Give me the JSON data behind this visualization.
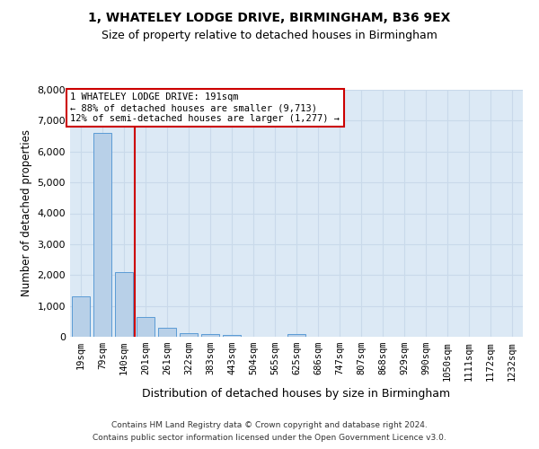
{
  "title": "1, WHATELEY LODGE DRIVE, BIRMINGHAM, B36 9EX",
  "subtitle": "Size of property relative to detached houses in Birmingham",
  "xlabel": "Distribution of detached houses by size in Birmingham",
  "ylabel": "Number of detached properties",
  "footnote1": "Contains HM Land Registry data © Crown copyright and database right 2024.",
  "footnote2": "Contains public sector information licensed under the Open Government Licence v3.0.",
  "bar_labels": [
    "19sqm",
    "79sqm",
    "140sqm",
    "201sqm",
    "261sqm",
    "322sqm",
    "383sqm",
    "443sqm",
    "504sqm",
    "565sqm",
    "625sqm",
    "686sqm",
    "747sqm",
    "807sqm",
    "868sqm",
    "929sqm",
    "990sqm",
    "1050sqm",
    "1111sqm",
    "1172sqm",
    "1232sqm"
  ],
  "bar_values": [
    1300,
    6600,
    2100,
    650,
    300,
    130,
    80,
    50,
    0,
    0,
    80,
    0,
    0,
    0,
    0,
    0,
    0,
    0,
    0,
    0,
    0
  ],
  "bar_color": "#b8d0e8",
  "bar_edge_color": "#5b9bd5",
  "grid_color": "#c9d9ea",
  "background_color": "#dce9f5",
  "vline_color": "#cc0000",
  "annotation_line1": "1 WHATELEY LODGE DRIVE: 191sqm",
  "annotation_line2": "← 88% of detached houses are smaller (9,713)",
  "annotation_line3": "12% of semi-detached houses are larger (1,277) →",
  "ylim": [
    0,
    8000
  ],
  "yticks": [
    0,
    1000,
    2000,
    3000,
    4000,
    5000,
    6000,
    7000,
    8000
  ],
  "vline_pos": 2.5,
  "title_fontsize": 10,
  "subtitle_fontsize": 9
}
